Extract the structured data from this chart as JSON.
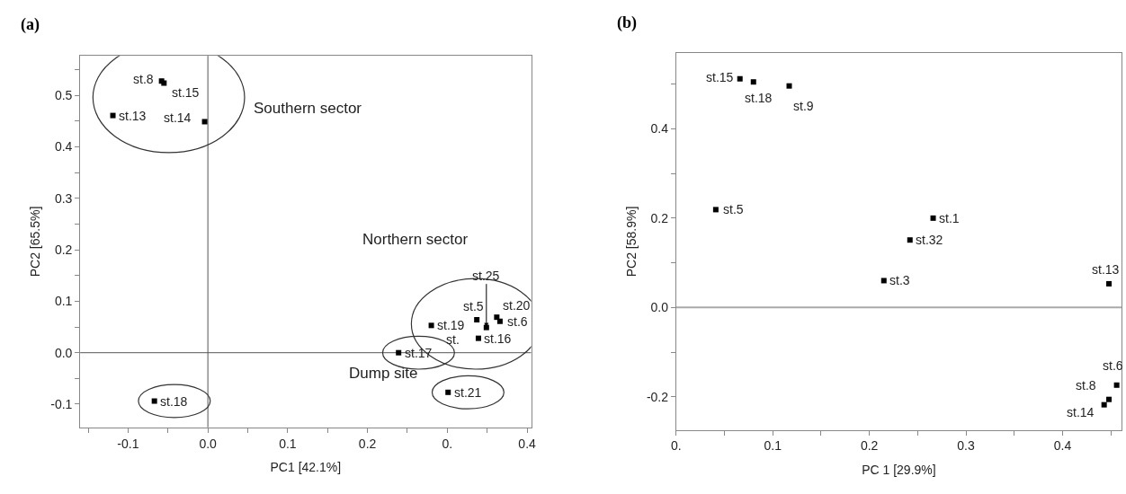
{
  "chart_data": [
    {
      "type": "scatter",
      "title": "(a)",
      "xlabel": "PC1 [42.1%]",
      "ylabel": "PC2 [65.5%]",
      "color": "#000000",
      "marker": "square",
      "grid": false,
      "x": [
        -0.058,
        -0.055,
        -0.119,
        -0.004,
        -0.067,
        0.239,
        0.301,
        0.28,
        0.337,
        0.349,
        0.339,
        0.362,
        0.366
      ],
      "values": [
        0.528,
        0.524,
        0.461,
        0.449,
        -0.094,
        0.0,
        -0.077,
        0.053,
        0.064,
        0.049,
        0.028,
        0.069,
        0.061
      ],
      "value_labels": [
        "st.8",
        "st.15",
        "st.13",
        "st.14",
        "st.18",
        "st.17",
        "st.21",
        "st.19",
        "st.5",
        "st.25",
        "st.16",
        "st.20",
        "st.6"
      ],
      "xlim": [
        -0.16,
        0.405
      ],
      "ylim": [
        -0.145,
        0.577
      ],
      "xticks": [
        {
          "value": -0.15,
          "label": null
        },
        -0.1,
        {
          "value": -0.05,
          "label": null
        },
        {
          "value": 0,
          "label": "0.0"
        },
        {
          "value": 0.05,
          "label": null
        },
        0.1,
        {
          "value": 0.15,
          "label": null
        },
        0.2,
        {
          "value": 0.25,
          "label": null
        },
        {
          "value": 0.3,
          "label": "0."
        },
        {
          "value": 0.35,
          "label": null
        },
        0.4
      ],
      "yticks": [
        -0.1,
        {
          "value": -0.05,
          "label": null
        },
        {
          "value": 0,
          "label": "0.0"
        },
        {
          "value": 0.05,
          "label": null
        },
        0.1,
        {
          "value": 0.15,
          "label": null
        },
        0.2,
        {
          "value": 0.25,
          "label": null
        },
        0.3,
        {
          "value": 0.35,
          "label": null
        },
        0.4,
        {
          "value": 0.45,
          "label": null
        },
        0.5,
        {
          "value": 0.55,
          "label": null
        }
      ],
      "ref_lines": [
        {
          "axis": "x",
          "value": 0,
          "color": "#555555"
        },
        {
          "axis": "y",
          "value": 0,
          "color": "#555555"
        }
      ],
      "annotations": [
        "Southern sector",
        "Northern sector",
        "Dump site",
        "st."
      ]
    },
    {
      "type": "scatter",
      "title": "(b)",
      "xlabel": "PC 1 [29.9%]",
      "ylabel": "PC2 [58.9%]",
      "color": "#000000",
      "marker": "square",
      "grid": false,
      "x": [
        0.066,
        0.08,
        0.117,
        0.041,
        0.266,
        0.242,
        0.215,
        0.448,
        0.456,
        0.448,
        0.443
      ],
      "values": [
        0.512,
        0.505,
        0.496,
        0.219,
        0.2,
        0.151,
        0.06,
        0.053,
        -0.174,
        -0.206,
        -0.218
      ],
      "value_labels": [
        "st.15",
        "st.18",
        "st.9",
        "st.5",
        "st.1",
        "st.32",
        "st.3",
        "st.13",
        "st.6",
        "st.8",
        "st.14"
      ],
      "xlim": [
        0,
        0.461
      ],
      "ylim": [
        -0.274,
        0.569
      ],
      "xticks": [
        {
          "value": 0,
          "label": "0."
        },
        {
          "value": 0.05,
          "label": null
        },
        0.1,
        {
          "value": 0.15,
          "label": null
        },
        0.2,
        {
          "value": 0.25,
          "label": null
        },
        0.3,
        {
          "value": 0.35,
          "label": null
        },
        0.4,
        {
          "value": 0.45,
          "label": null
        }
      ],
      "yticks": [
        {
          "value": -0.2,
          "label": "-0.2"
        },
        {
          "value": -0.1,
          "label": null
        },
        {
          "value": 0,
          "label": "0.0"
        },
        {
          "value": 0.1,
          "label": null
        },
        0.2,
        {
          "value": 0.3,
          "label": null
        },
        0.4,
        {
          "value": 0.5,
          "label": null
        }
      ],
      "ref_lines": [
        {
          "axis": "y",
          "value": 0,
          "color": "#aaaaaa"
        }
      ]
    }
  ]
}
